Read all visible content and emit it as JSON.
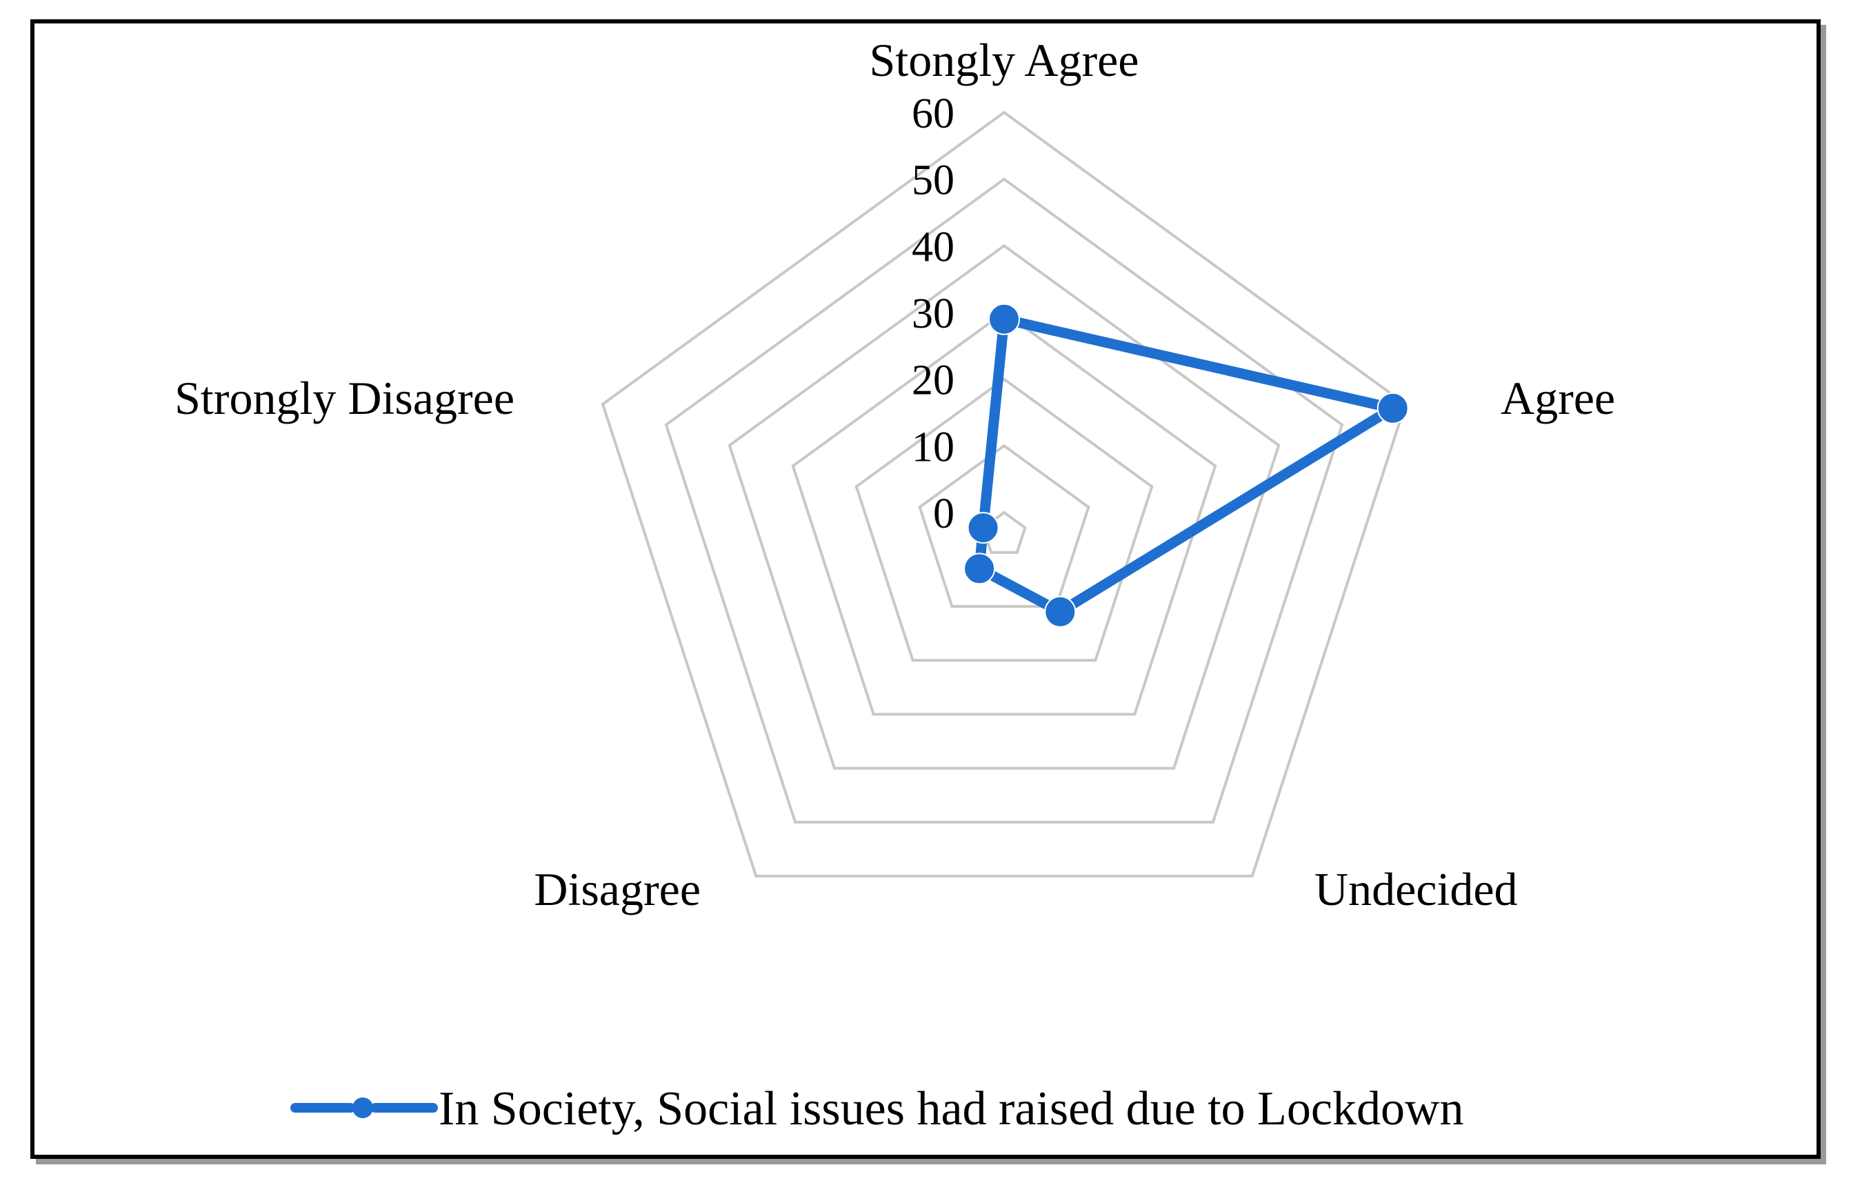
{
  "chart_data": {
    "type": "radar",
    "categories": [
      "Stongly Agree",
      "Agree",
      "Undecided",
      "Disagree",
      "Strongly Disagree"
    ],
    "series": [
      {
        "name": "In Society, Social issues had raised due to Lockdown",
        "values": [
          29,
          58,
          11,
          3,
          0
        ]
      }
    ],
    "r_ticks": [
      "0",
      "10",
      "20",
      "30",
      "40",
      "50",
      "60"
    ],
    "rlim": [
      0,
      60
    ],
    "grid": true,
    "legend": "bottom",
    "colors": {
      "series": "#1f6fd0",
      "grid": "#c8c8c8",
      "frame": "#000000"
    }
  }
}
